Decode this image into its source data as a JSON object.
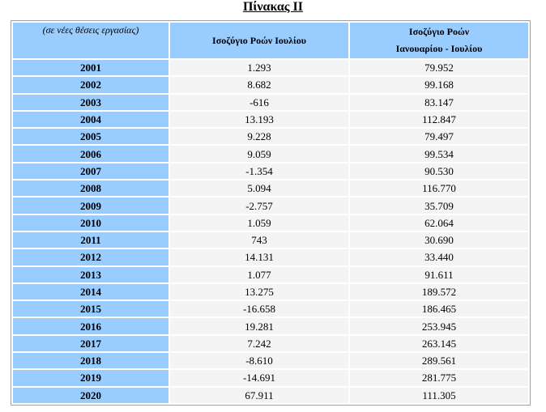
{
  "title": "Πίνακας ΙΙ",
  "table": {
    "header": [
      "(σε νέες θέσεις εργασίας)",
      "Ισοζύγιο Ροών Ιουλίου",
      [
        "Ισοζύγιο Ροών",
        "Ιανουαρίου -  Ιουλίου"
      ]
    ],
    "rows": [
      [
        "2001",
        "1.293",
        "79.952"
      ],
      [
        "2002",
        "8.682",
        "99.168"
      ],
      [
        "2003",
        "-616",
        "83.147"
      ],
      [
        "2004",
        "13.193",
        "112.847"
      ],
      [
        "2005",
        "9.228",
        "79.497"
      ],
      [
        "2006",
        "9.059",
        "99.534"
      ],
      [
        "2007",
        "-1.354",
        "90.530"
      ],
      [
        "2008",
        "5.094",
        "116.770"
      ],
      [
        "2009",
        "-2.757",
        "35.709"
      ],
      [
        "2010",
        "1.059",
        "62.064"
      ],
      [
        "2011",
        "743",
        "30.690"
      ],
      [
        "2012",
        "14.131",
        "33.440"
      ],
      [
        "2013",
        "1.077",
        "91.611"
      ],
      [
        "2014",
        "13.275",
        "189.572"
      ],
      [
        "2015",
        "-16.658",
        "186.465"
      ],
      [
        "2016",
        "19.281",
        "253.945"
      ],
      [
        "2017",
        "7.242",
        "263.145"
      ],
      [
        "2018",
        "-8.610",
        "289.561"
      ],
      [
        "2019",
        "-14.691",
        "281.775"
      ],
      [
        "2020",
        "67.911",
        "111.305"
      ]
    ]
  }
}
